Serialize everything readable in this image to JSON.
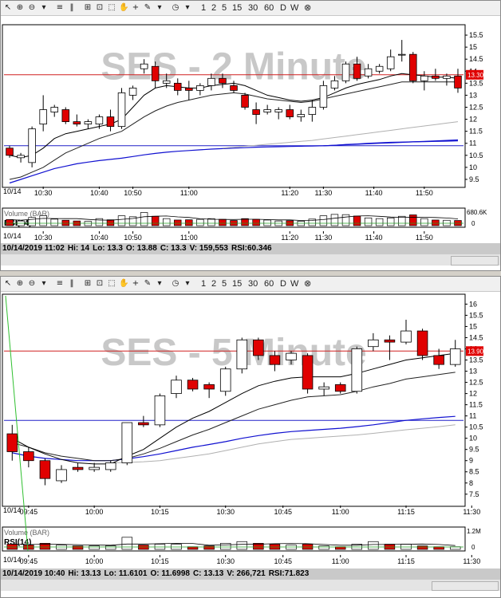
{
  "toolbar": {
    "icons": [
      "cursor-icon",
      "zoom-in-icon",
      "zoom-out-icon",
      "dropdown-icon",
      "bars-icon",
      "columns-icon",
      "crosshair-icon",
      "window-icon",
      "select-icon",
      "hand-icon",
      "plus-icon",
      "pencil-icon",
      "dropdown-icon",
      "clock-icon",
      "dropdown-icon"
    ],
    "intervals": [
      "1",
      "2",
      "5",
      "15",
      "30",
      "60",
      "D",
      "W"
    ],
    "close_symbol": "⊗"
  },
  "charts": [
    {
      "watermark": "SES - 2 Minute",
      "price_label": "13.30",
      "date_label": "10/14",
      "volume_label": "Volume (BAR)",
      "volume_scale_label": "680.6K",
      "volume_zero_label": "0",
      "rsi_label": "RSI(14)",
      "status": {
        "datetime": "10/14/2019 11:02",
        "hi": "Hi: 14",
        "lo": "Lo: 13.3",
        "open": "O: 13.88",
        "close": "C: 13.3",
        "volume": "V: 159,553",
        "rsi": "RSI:60.346"
      }
    },
    {
      "watermark": "SES - 5 Minute",
      "price_label": "13.90",
      "date_label": "10/14",
      "volume_label": "Volume (BAR)",
      "volume_scale_label": "1.2M",
      "volume_zero_label": "0",
      "rsi_label": "RSI(14)",
      "status": {
        "datetime": "10/14/2019 10:40",
        "hi": "Hi: 13.13",
        "lo": "Lo: 11.6101",
        "open": "O: 11.6998",
        "close": "C: 13.13",
        "volume": "V: 266,721",
        "rsi": "RSI:71.823"
      }
    }
  ],
  "chart_data": [
    {
      "type": "candlestick",
      "interval": "2 Minute",
      "ylim": [
        9.3,
        15.8
      ],
      "y_ticks": [
        "9.5",
        "10",
        "10.5",
        "11",
        "11.5",
        "12",
        "12.5",
        "13",
        "13.5",
        "14",
        "14.5",
        "15",
        "15.5"
      ],
      "x_ticks": [
        [
          "10:30",
          3.5
        ],
        [
          "10:40",
          8.5
        ],
        [
          "10:50",
          11.5
        ],
        [
          "11:00",
          16.5
        ],
        [
          "11:20",
          25.5
        ],
        [
          "11:30",
          28.5
        ],
        [
          "11:40",
          33
        ],
        [
          "11:50",
          37.5
        ]
      ],
      "hline_red": 13.85,
      "hline_blue": 10.9,
      "candles": [
        {
          "o": 10.8,
          "h": 10.9,
          "l": 10.4,
          "c": 10.5
        },
        {
          "o": 10.4,
          "h": 10.6,
          "l": 10.2,
          "c": 10.5
        },
        {
          "o": 10.2,
          "h": 11.7,
          "l": 10.0,
          "c": 11.6
        },
        {
          "o": 11.8,
          "h": 13.0,
          "l": 11.5,
          "c": 12.4
        },
        {
          "o": 12.3,
          "h": 12.6,
          "l": 12.1,
          "c": 12.5
        },
        {
          "o": 12.4,
          "h": 12.5,
          "l": 11.8,
          "c": 11.9
        },
        {
          "o": 11.9,
          "h": 12.2,
          "l": 11.7,
          "c": 11.8
        },
        {
          "o": 11.8,
          "h": 12.0,
          "l": 11.6,
          "c": 11.9
        },
        {
          "o": 11.8,
          "h": 12.2,
          "l": 11.6,
          "c": 12.1
        },
        {
          "o": 12.1,
          "h": 12.4,
          "l": 11.5,
          "c": 11.7
        },
        {
          "o": 11.7,
          "h": 13.3,
          "l": 11.6,
          "c": 13.1
        },
        {
          "o": 13.0,
          "h": 13.4,
          "l": 12.8,
          "c": 13.3
        },
        {
          "o": 14.1,
          "h": 14.5,
          "l": 13.9,
          "c": 14.3
        },
        {
          "o": 14.2,
          "h": 14.4,
          "l": 13.3,
          "c": 13.6
        },
        {
          "o": 13.5,
          "h": 13.9,
          "l": 13.3,
          "c": 13.6
        },
        {
          "o": 13.5,
          "h": 13.7,
          "l": 13.0,
          "c": 13.2
        },
        {
          "o": 13.3,
          "h": 13.6,
          "l": 12.8,
          "c": 13.2
        },
        {
          "o": 13.2,
          "h": 13.5,
          "l": 13.0,
          "c": 13.4
        },
        {
          "o": 13.4,
          "h": 13.9,
          "l": 13.2,
          "c": 13.7
        },
        {
          "o": 13.7,
          "h": 13.9,
          "l": 13.3,
          "c": 13.5
        },
        {
          "o": 13.4,
          "h": 13.6,
          "l": 13.1,
          "c": 13.2
        },
        {
          "o": 13.0,
          "h": 13.1,
          "l": 12.4,
          "c": 12.5
        },
        {
          "o": 12.4,
          "h": 12.7,
          "l": 11.8,
          "c": 12.2
        },
        {
          "o": 12.3,
          "h": 12.6,
          "l": 12.2,
          "c": 12.4
        },
        {
          "o": 12.3,
          "h": 12.5,
          "l": 12.0,
          "c": 12.4
        },
        {
          "o": 12.4,
          "h": 12.6,
          "l": 12.0,
          "c": 12.1
        },
        {
          "o": 12.1,
          "h": 12.4,
          "l": 11.9,
          "c": 12.2
        },
        {
          "o": 12.2,
          "h": 12.8,
          "l": 11.9,
          "c": 12.5
        },
        {
          "o": 12.5,
          "h": 13.6,
          "l": 12.4,
          "c": 13.4
        },
        {
          "o": 13.3,
          "h": 13.8,
          "l": 13.2,
          "c": 13.6
        },
        {
          "o": 13.6,
          "h": 14.4,
          "l": 13.5,
          "c": 14.3
        },
        {
          "o": 14.3,
          "h": 14.6,
          "l": 13.6,
          "c": 13.7
        },
        {
          "o": 13.8,
          "h": 14.3,
          "l": 13.7,
          "c": 14.1
        },
        {
          "o": 14.0,
          "h": 14.3,
          "l": 13.9,
          "c": 14.2
        },
        {
          "o": 14.1,
          "h": 14.9,
          "l": 14.0,
          "c": 14.6
        },
        {
          "o": 14.7,
          "h": 15.3,
          "l": 14.4,
          "c": 14.7
        },
        {
          "o": 14.7,
          "h": 14.8,
          "l": 13.5,
          "c": 13.6
        },
        {
          "o": 13.6,
          "h": 14.0,
          "l": 13.2,
          "c": 13.8
        },
        {
          "o": 13.8,
          "h": 14.1,
          "l": 13.6,
          "c": 13.7
        },
        {
          "o": 13.7,
          "h": 13.9,
          "l": 13.4,
          "c": 13.8
        },
        {
          "o": 13.8,
          "h": 14.1,
          "l": 13.1,
          "c": 13.3
        }
      ],
      "ma1": [
        10.5,
        10.4,
        10.5,
        10.8,
        11.2,
        11.4,
        11.5,
        11.6,
        11.7,
        11.8,
        12.0,
        12.5,
        13.0,
        13.3,
        13.4,
        13.35,
        13.3,
        13.3,
        13.4,
        13.45,
        13.5,
        13.4,
        13.2,
        13.0,
        12.9,
        12.8,
        12.75,
        12.8,
        12.9,
        13.1,
        13.3,
        13.45,
        13.55,
        13.65,
        13.8,
        13.9,
        13.85,
        13.8,
        13.75,
        13.75,
        13.7
      ],
      "ma2": [
        9.5,
        9.6,
        9.8,
        10.0,
        10.3,
        10.6,
        10.8,
        11.0,
        11.2,
        11.35,
        11.5,
        11.8,
        12.1,
        12.35,
        12.55,
        12.7,
        12.8,
        12.9,
        13.0,
        13.05,
        13.1,
        13.05,
        12.95,
        12.85,
        12.8,
        12.75,
        12.7,
        12.75,
        12.85,
        12.95,
        13.05,
        13.15,
        13.25,
        13.35,
        13.45,
        13.55,
        13.55,
        13.55,
        13.55,
        13.55,
        13.55
      ],
      "ma3": [
        null,
        null,
        null,
        null,
        null,
        null,
        null,
        null,
        null,
        null,
        null,
        null,
        null,
        null,
        null,
        null,
        null,
        null,
        null,
        10.8,
        10.84,
        10.88,
        10.92,
        10.96,
        11.0,
        11.04,
        11.08,
        11.12,
        11.18,
        11.24,
        11.3,
        11.36,
        11.42,
        11.48,
        11.54,
        11.6,
        11.66,
        11.72,
        11.78,
        11.84,
        11.9
      ],
      "ma4": [
        null,
        null,
        null,
        null,
        null,
        null,
        null,
        null,
        null,
        null,
        null,
        null,
        null,
        null,
        null,
        null,
        null,
        null,
        null,
        null,
        null,
        null,
        null,
        null,
        null,
        null,
        null,
        null,
        10.9,
        10.92,
        10.95,
        10.97,
        11.0,
        11.02,
        11.04,
        11.05,
        11.06,
        11.07,
        11.08,
        11.09,
        11.1
      ],
      "ma_blue": [
        9.35,
        9.5,
        9.65,
        9.8,
        9.95,
        10.05,
        10.15,
        10.22,
        10.28,
        10.33,
        10.38,
        10.45,
        10.52,
        10.58,
        10.63,
        10.67,
        10.7,
        10.73,
        10.76,
        10.78,
        10.8,
        10.82,
        10.84,
        10.85,
        10.86,
        10.87,
        10.88,
        10.89,
        10.9,
        10.92,
        10.94,
        10.96,
        10.98,
        11.0,
        11.02,
        11.04,
        11.06,
        11.08,
        11.1,
        11.12,
        11.14
      ],
      "volume_max": 680600,
      "volume": [
        260000,
        200000,
        350000,
        430000,
        280000,
        230000,
        200000,
        180000,
        300000,
        250000,
        420000,
        380000,
        560000,
        400000,
        300000,
        240000,
        250000,
        270000,
        300000,
        270000,
        220000,
        300000,
        270000,
        240000,
        200000,
        210000,
        190000,
        280000,
        420000,
        480000,
        470000,
        410000,
        330000,
        300000,
        330000,
        400000,
        460000,
        300000,
        240000,
        230000,
        220000
      ]
    },
    {
      "type": "candlestick",
      "interval": "5 Minute",
      "ylim": [
        7.1,
        16.3
      ],
      "y_ticks": [
        "7.5",
        "8",
        "8.5",
        "9",
        "9.5",
        "10",
        "10.5",
        "11",
        "11.5",
        "12",
        "12.5",
        "13",
        "13.5",
        "14",
        "14.5",
        "15",
        "15.5",
        "16"
      ],
      "x_ticks": [
        [
          "09:45",
          1.5
        ],
        [
          "10:00",
          5.5
        ],
        [
          "10:15",
          9.5
        ],
        [
          "10:30",
          13.5
        ],
        [
          "10:45",
          17
        ],
        [
          "11:00",
          20.5
        ],
        [
          "11:15",
          24.5
        ],
        [
          "11:30",
          28.5
        ],
        [
          "11:45",
          32.5
        ]
      ],
      "hline_red": 13.9,
      "hline_blue": 10.8,
      "candles": [
        {
          "o": 10.2,
          "h": 10.6,
          "l": 9.0,
          "c": 9.4
        },
        {
          "o": 9.4,
          "h": 9.6,
          "l": 8.7,
          "c": 9.0
        },
        {
          "o": 9.0,
          "h": 9.1,
          "l": 7.9,
          "c": 8.2
        },
        {
          "o": 8.1,
          "h": 8.8,
          "l": 8.0,
          "c": 8.6
        },
        {
          "o": 8.7,
          "h": 8.9,
          "l": 8.5,
          "c": 8.6
        },
        {
          "o": 8.6,
          "h": 8.9,
          "l": 8.5,
          "c": 8.7
        },
        {
          "o": 8.6,
          "h": 9.0,
          "l": 8.5,
          "c": 8.9
        },
        {
          "o": 8.9,
          "h": 10.7,
          "l": 8.8,
          "c": 10.7
        },
        {
          "o": 10.7,
          "h": 11.0,
          "l": 10.5,
          "c": 10.6
        },
        {
          "o": 10.6,
          "h": 12.0,
          "l": 10.5,
          "c": 11.9
        },
        {
          "o": 12.0,
          "h": 12.8,
          "l": 11.8,
          "c": 12.6
        },
        {
          "o": 12.6,
          "h": 12.7,
          "l": 12.1,
          "c": 12.2
        },
        {
          "o": 12.4,
          "h": 12.5,
          "l": 11.8,
          "c": 12.2
        },
        {
          "o": 12.1,
          "h": 13.2,
          "l": 11.9,
          "c": 13.1
        },
        {
          "o": 13.1,
          "h": 14.5,
          "l": 12.9,
          "c": 14.4
        },
        {
          "o": 14.4,
          "h": 14.5,
          "l": 13.5,
          "c": 13.7
        },
        {
          "o": 13.7,
          "h": 13.9,
          "l": 13.0,
          "c": 13.3
        },
        {
          "o": 13.5,
          "h": 13.9,
          "l": 13.3,
          "c": 13.8
        },
        {
          "o": 13.7,
          "h": 13.8,
          "l": 12.0,
          "c": 12.2
        },
        {
          "o": 12.2,
          "h": 12.5,
          "l": 11.9,
          "c": 12.3
        },
        {
          "o": 12.4,
          "h": 12.5,
          "l": 12.0,
          "c": 12.1
        },
        {
          "o": 12.1,
          "h": 14.1,
          "l": 12.0,
          "c": 14.0
        },
        {
          "o": 14.1,
          "h": 14.7,
          "l": 13.9,
          "c": 14.4
        },
        {
          "o": 14.4,
          "h": 14.6,
          "l": 13.5,
          "c": 14.3
        },
        {
          "o": 14.3,
          "h": 15.3,
          "l": 14.2,
          "c": 14.8
        },
        {
          "o": 14.8,
          "h": 14.9,
          "l": 13.5,
          "c": 13.7
        },
        {
          "o": 13.7,
          "h": 14.0,
          "l": 13.1,
          "c": 13.3
        },
        {
          "o": 13.3,
          "h": 14.4,
          "l": 13.2,
          "c": 14.0
        }
      ],
      "ma1": [
        10.0,
        9.6,
        9.3,
        9.05,
        8.9,
        8.85,
        8.85,
        9.2,
        9.5,
        10.0,
        10.5,
        10.9,
        11.2,
        11.6,
        12.0,
        12.35,
        12.55,
        12.7,
        12.75,
        12.75,
        12.75,
        12.9,
        13.1,
        13.3,
        13.5,
        13.6,
        13.7,
        13.8
      ],
      "ma2": [
        9.8,
        9.6,
        9.35,
        9.2,
        9.1,
        9.0,
        9.0,
        9.1,
        9.3,
        9.55,
        9.85,
        10.15,
        10.4,
        10.7,
        11.0,
        11.3,
        11.5,
        11.7,
        11.85,
        11.9,
        11.95,
        12.1,
        12.3,
        12.45,
        12.65,
        12.75,
        12.85,
        12.95
      ],
      "ma3": [
        null,
        null,
        null,
        null,
        null,
        null,
        8.9,
        8.92,
        8.95,
        9.0,
        9.1,
        9.2,
        9.3,
        9.45,
        9.6,
        9.75,
        9.85,
        9.95,
        10.0,
        10.05,
        10.1,
        10.15,
        10.22,
        10.3,
        10.38,
        10.45,
        10.52,
        10.6
      ],
      "ma_blue": [
        9.35,
        9.2,
        9.1,
        9.05,
        9.0,
        9.0,
        9.0,
        9.08,
        9.18,
        9.3,
        9.45,
        9.6,
        9.72,
        9.85,
        10.0,
        10.12,
        10.22,
        10.3,
        10.35,
        10.4,
        10.45,
        10.52,
        10.6,
        10.7,
        10.8,
        10.87,
        10.93,
        10.98
      ],
      "volume_max": 1200000,
      "volume": [
        300000,
        250000,
        350000,
        250000,
        200000,
        200000,
        200000,
        700000,
        250000,
        300000,
        300000,
        150000,
        200000,
        350000,
        450000,
        350000,
        300000,
        250000,
        300000,
        200000,
        150000,
        300000,
        450000,
        300000,
        300000,
        200000,
        150000,
        150000
      ]
    }
  ]
}
